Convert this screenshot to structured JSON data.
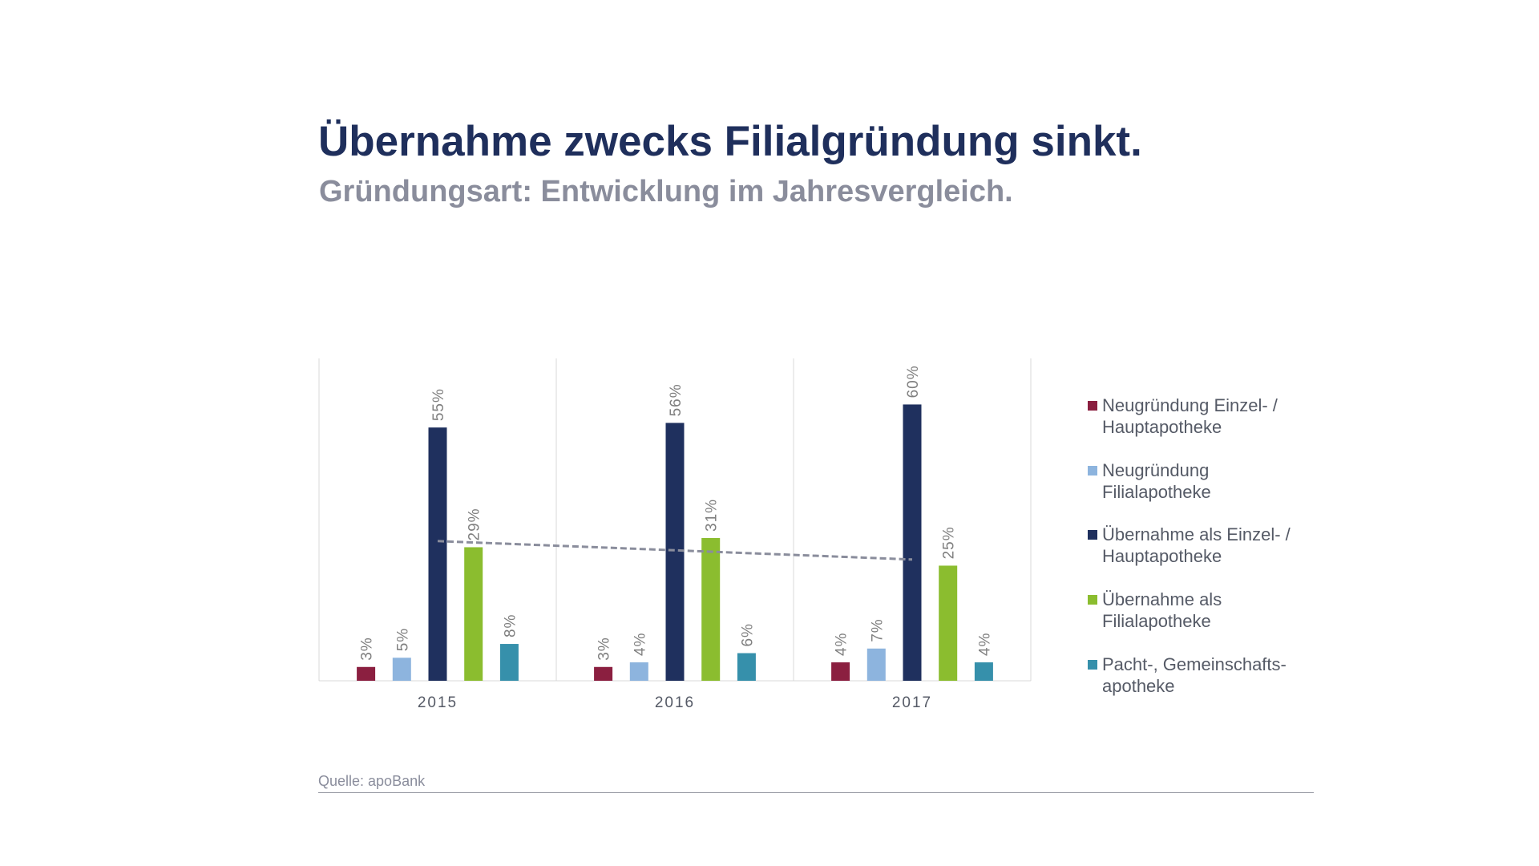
{
  "chart_data": {
    "type": "bar",
    "title": "Übernahme zwecks Filialgründung sinkt.",
    "subtitle": "Gründungsart: Entwicklung im Jahresvergleich.",
    "categories": [
      "2015",
      "2016",
      "2017"
    ],
    "ylim": [
      0,
      70
    ],
    "grid": "vertical category separators",
    "legend_position": "right",
    "series": [
      {
        "name": "Neugründung Einzel- /\nHauptapotheke",
        "color": "#8b1f40",
        "values": [
          3,
          3,
          4
        ],
        "labels": [
          "3%",
          "3%",
          "4%"
        ]
      },
      {
        "name": "Neugründung\nFilialapotheke",
        "color": "#8db4de",
        "values": [
          5,
          4,
          7
        ],
        "labels": [
          "5%",
          "4%",
          "7%"
        ]
      },
      {
        "name": "Übernahme als Einzel- /\nHauptapotheke",
        "color": "#1f305e",
        "values": [
          55,
          56,
          60
        ],
        "labels": [
          "55%",
          "56%",
          "60%"
        ]
      },
      {
        "name": "Übernahme als\nFilialapotheke",
        "color": "#8bbd2f",
        "values": [
          29,
          31,
          25
        ],
        "labels": [
          "29%",
          "31%",
          "25%"
        ]
      },
      {
        "name": "Pacht-, Gemeinschafts-\napotheke",
        "color": "#3690ab",
        "values": [
          8,
          6,
          4
        ],
        "labels": [
          "8%",
          "6%",
          "4%"
        ]
      }
    ],
    "trendline": {
      "series": "Übernahme als\nFilialapotheke",
      "type": "linear",
      "style": "dashed",
      "color": "#8a8d9c"
    },
    "source": "Quelle: apoBank"
  }
}
